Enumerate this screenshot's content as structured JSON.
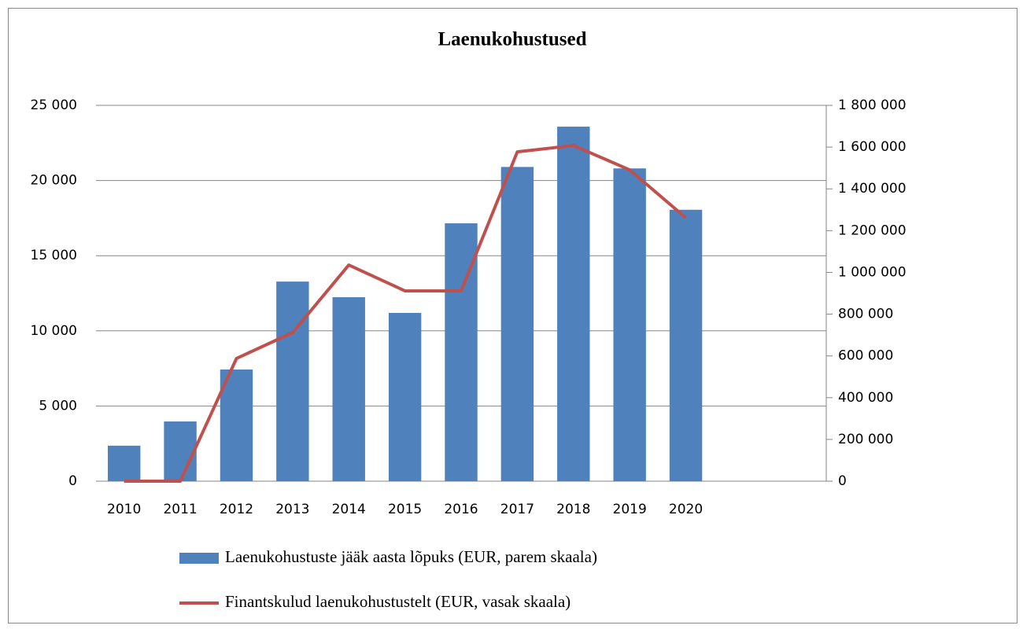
{
  "chart_data": {
    "type": "bar_line",
    "title": "Laenukohustused",
    "categories": [
      "2010",
      "2011",
      "2012",
      "2013",
      "2014",
      "2015",
      "2016",
      "2017",
      "2018",
      "2019",
      "2020",
      null,
      null
    ],
    "series": [
      {
        "name": "Laenukohustuste jääk aasta lõpuks (EUR, parem skaala)",
        "type": "bar",
        "axis": "y2",
        "color": "#4f81bd",
        "values": [
          170000,
          286000,
          535000,
          956000,
          881000,
          806000,
          1235000,
          1505000,
          1698000,
          1498000,
          1300000,
          null,
          null
        ]
      },
      {
        "name": "Finantskulud laenukohustustelt (EUR, vasak skaala)",
        "type": "line",
        "axis": "y",
        "color": "#c0504d",
        "values": [
          0,
          0,
          8160,
          9885,
          14380,
          12660,
          12660,
          21910,
          22330,
          20710,
          17520,
          null,
          null
        ]
      }
    ],
    "ylim": [
      0,
      25000
    ],
    "yticks": [
      0,
      {
        "value": 5000,
        "label": "5 000"
      },
      {
        "value": 10000,
        "label": "10 000"
      },
      {
        "value": 15000,
        "label": "15 000"
      },
      {
        "value": 20000,
        "label": "20 000"
      },
      {
        "value": 25000,
        "label": "25 000"
      }
    ],
    "y2lim": [
      0,
      1800000
    ],
    "y2ticks": [
      0,
      {
        "value": 200000,
        "label": "200 000"
      },
      {
        "value": 400000,
        "label": "400 000"
      },
      {
        "value": 600000,
        "label": "600 000"
      },
      {
        "value": 800000,
        "label": "800 000"
      },
      {
        "value": 1000000,
        "label": "1 000 000"
      },
      {
        "value": 1200000,
        "label": "1 200 000"
      },
      {
        "value": 1400000,
        "label": "1 400 000"
      },
      {
        "value": 1600000,
        "label": "1 600 000"
      },
      {
        "value": 1800000,
        "label": "1 800 000"
      }
    ],
    "grid": true,
    "legend": "bottom"
  }
}
